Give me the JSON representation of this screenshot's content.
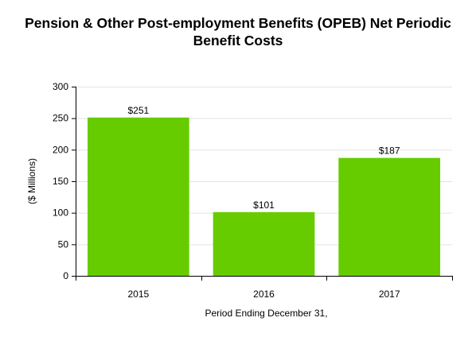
{
  "chart_data": {
    "type": "bar",
    "title_lines": [
      "Pension & Other Post-employment Benefits (OPEB) Net Periodic",
      "Benefit Costs"
    ],
    "xlabel": "Period Ending December 31,",
    "ylabel": "($ Millions)",
    "categories": [
      "2015",
      "2016",
      "2017"
    ],
    "values": [
      251,
      101,
      187
    ],
    "data_labels": [
      "$251",
      "$101",
      "$187"
    ],
    "ylim": [
      0,
      300
    ],
    "yticks": [
      0,
      50,
      100,
      150,
      200,
      250,
      300
    ],
    "bar_color": "#66cc00",
    "grid": "horizontal",
    "legend": "none"
  }
}
